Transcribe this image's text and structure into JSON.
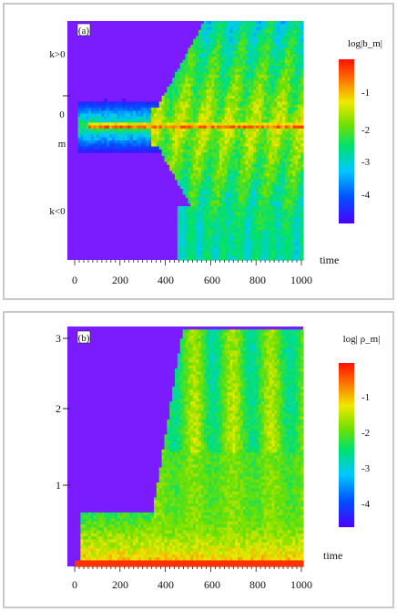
{
  "chart_data": [
    {
      "type": "heatmap",
      "panel_label": "(a)",
      "xlabel": "time",
      "x_ticks": [
        "0",
        "200",
        "400",
        "600",
        "800",
        "1000"
      ],
      "xlim": [
        0,
        1000
      ],
      "y_tick_labels": [
        "k>0",
        "0",
        "m",
        "k<0"
      ],
      "colorbar_title": "log|b_m|",
      "colorbar_ticks": [
        "-1",
        "-2",
        "-3",
        "-4"
      ],
      "colormap": [
        "#4b00ff",
        "#0050ff",
        "#00c8ff",
        "#00e070",
        "#70e000",
        "#f0e800",
        "#ff7000",
        "#ff1000"
      ],
      "background_color": "#7a1cff",
      "legend_position": "right",
      "grid": false
    },
    {
      "type": "heatmap",
      "panel_label": "(b)",
      "xlabel": "time",
      "x_ticks": [
        "0",
        "200",
        "400",
        "600",
        "800",
        "1000"
      ],
      "xlim": [
        0,
        1000
      ],
      "y_ticks": [
        "3",
        "2",
        "1"
      ],
      "ylim": [
        0,
        3.2
      ],
      "colorbar_title": "log| ρ_m|",
      "colorbar_ticks": [
        "-1",
        "-2",
        "-3",
        "-4"
      ],
      "colormap": [
        "#4b00ff",
        "#0050ff",
        "#00c8ff",
        "#00e070",
        "#70e000",
        "#f0e800",
        "#ff7000",
        "#ff1000"
      ],
      "background_color": "#7a1cff",
      "legend_position": "right",
      "grid": false
    }
  ]
}
